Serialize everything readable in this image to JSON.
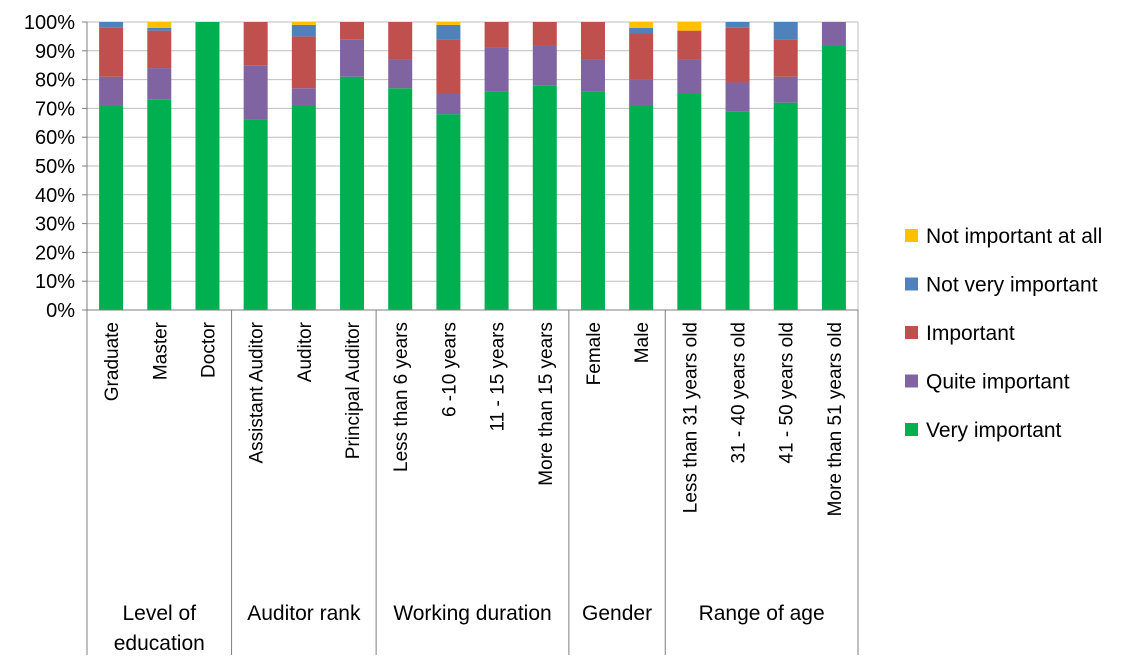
{
  "chart_data": {
    "type": "bar",
    "stacked": true,
    "percent": true,
    "title": "",
    "xlabel": "",
    "ylabel": "",
    "ylim": [
      0,
      100
    ],
    "y_ticks": [
      "0%",
      "10%",
      "20%",
      "30%",
      "40%",
      "50%",
      "60%",
      "70%",
      "80%",
      "90%",
      "100%"
    ],
    "grid": true,
    "legend_position": "right",
    "categories": [
      "Graduate",
      "Master",
      "Doctor",
      "Assistant Auditor",
      "Auditor",
      "Principal Auditor",
      "Less than 6 years",
      "6 -10 years",
      "11 - 15 years",
      "More than 15 years",
      "Female",
      "Male",
      "Less than 31 years old",
      "31 - 40 years old",
      "41 - 50 years old",
      "More than 51 years old"
    ],
    "groups": [
      {
        "label": "Level of education",
        "count": 3
      },
      {
        "label": "Auditor rank",
        "count": 3
      },
      {
        "label": "Working duration",
        "count": 4
      },
      {
        "label": "Gender",
        "count": 2
      },
      {
        "label": "Range of age",
        "count": 4
      }
    ],
    "series": [
      {
        "name": "Very important",
        "color": "#00b050",
        "values": [
          71,
          73,
          100,
          66,
          71,
          81,
          77,
          68,
          76,
          78,
          76,
          71,
          75,
          69,
          72,
          92
        ]
      },
      {
        "name": "Quite important",
        "color": "#8064a2",
        "values": [
          10,
          11,
          0,
          19,
          6,
          13,
          10,
          7,
          15,
          14,
          11,
          9,
          12,
          10,
          9,
          8
        ]
      },
      {
        "name": "Important",
        "color": "#c0504d",
        "values": [
          17,
          13,
          0,
          15,
          18,
          6,
          13,
          19,
          9,
          8,
          13,
          16,
          10,
          19,
          13,
          0
        ]
      },
      {
        "name": "Not very important",
        "color": "#4f81bd",
        "values": [
          2,
          1,
          0,
          0,
          4,
          0,
          0,
          5,
          0,
          0,
          0,
          2,
          0,
          2,
          6,
          0
        ]
      },
      {
        "name": "Not important at all",
        "color": "#ffc000",
        "values": [
          0,
          2,
          0,
          0,
          1,
          0,
          0,
          1,
          0,
          0,
          0,
          2,
          3,
          0,
          0,
          0
        ]
      }
    ],
    "legend_order": [
      "Not important at all",
      "Not very important",
      "Important",
      "Quite important",
      "Very important"
    ]
  }
}
